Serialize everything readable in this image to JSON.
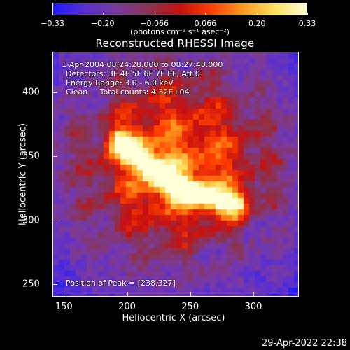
{
  "colorbar": {
    "tick_labels": [
      "−0.33",
      "−0.20",
      "−0.066",
      "0.066",
      "0.20",
      "0.33"
    ],
    "tick_values": [
      -0.33,
      -0.2,
      -0.066,
      0.066,
      0.2,
      0.33
    ],
    "units": "(photons cm⁻² s⁻¹ asec⁻²)",
    "range": [
      -0.33,
      0.33
    ],
    "colors": [
      "#1a1aff",
      "#5a2fd0",
      "#7a3aa0",
      "#8a3350",
      "#c81010",
      "#ff4000",
      "#ff9a20",
      "#ffe060",
      "#ffffd8"
    ]
  },
  "chart_data": {
    "type": "heatmap",
    "title": "Reconstructed RHESSI Image",
    "xlabel": "Heliocentric X (arcsec)",
    "ylabel": "Heliocentric Y (arcsec)",
    "xlim": [
      141,
      336
    ],
    "ylim": [
      240,
      432
    ],
    "xticks": [
      150,
      200,
      250,
      300
    ],
    "yticks": [
      250,
      300,
      350,
      400
    ],
    "peak_position": [
      238,
      327
    ],
    "source_centroid": [
      238,
      345
    ],
    "annotations": {
      "time": "1-Apr-2004 08:24:28.000 to 08:27:40.000",
      "detectors": "Detectors: 3F 4F 5F 6F 7F 8F, Att 0",
      "energy": "Energy Range: 3.0 - 6.0 keV",
      "clean": "Clean     Total counts: 4.32E+04",
      "peak": "Position of Peak = [238,327]"
    }
  },
  "footer": {
    "timestamp": "29-Apr-2022 22:38"
  }
}
